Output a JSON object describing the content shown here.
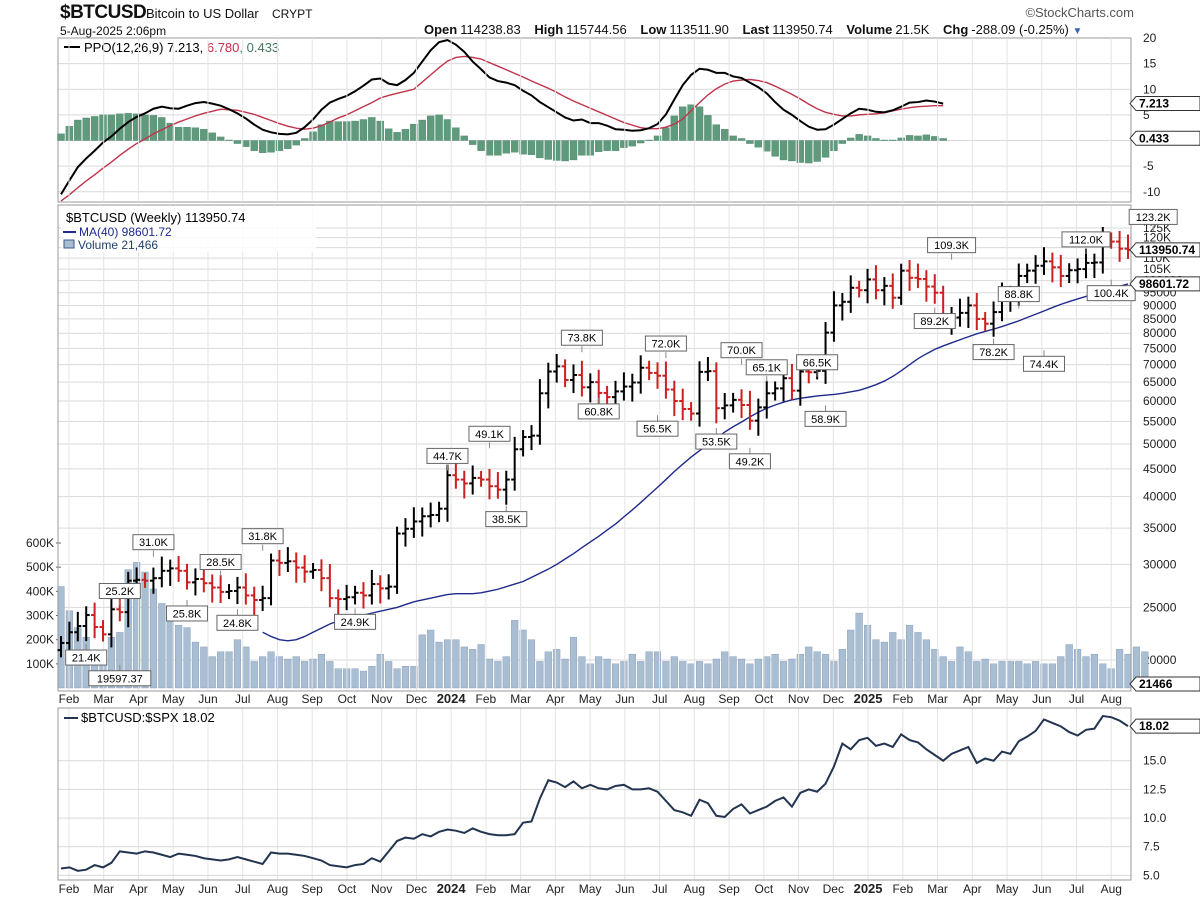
{
  "header": {
    "symbol": "$BTCUSD",
    "description": "Bitcoin to US Dollar",
    "exchange": "CRYPT",
    "date": "5-Aug-2025 2:06pm",
    "brand": "©StockCharts.com",
    "open_label": "Open",
    "open": "114238.83",
    "high_label": "High",
    "high": "115744.56",
    "low_label": "Low",
    "low": "113511.90",
    "last_label": "Last",
    "last": "113950.74",
    "volume_label": "Volume",
    "volume": "21.5K",
    "chg_label": "Chg",
    "chg": "-288.09 (-0.25%)"
  },
  "colors": {
    "up": "#000000",
    "down": "#cc1f1f",
    "ma": "#1f2a8c",
    "ppo": "#000000",
    "signal": "#c0334a",
    "hist": "#5f9a7c",
    "volume": "#a9bdd3",
    "ratio": "#22344f",
    "grid": "#d9d9d9"
  },
  "months": [
    "Feb",
    "Mar",
    "Apr",
    "May",
    "Jun",
    "Jul",
    "Aug",
    "Sep",
    "Oct",
    "Nov",
    "Dec",
    "2024",
    "Feb",
    "Mar",
    "Apr",
    "May",
    "Jun",
    "Jul",
    "Aug",
    "Sep",
    "Oct",
    "Nov",
    "Dec",
    "2025",
    "Feb",
    "Mar",
    "Apr",
    "May",
    "Jun",
    "Jul",
    "Aug"
  ],
  "chart_data": [
    {
      "type": "line",
      "panel": "PPO",
      "legend": [
        "PPO(12,26,9) 7.213, 6.780, 0.433"
      ],
      "legend_parts": [
        "PPO(12,26,9) 7.213, ",
        "6.780",
        ", 0.433"
      ],
      "y_ticks": [
        20,
        15,
        10,
        5,
        0,
        -5,
        -10
      ],
      "ylim": [
        -12,
        20
      ],
      "last_labels": [
        "7.213",
        "0.433"
      ],
      "ppo": [
        -10.5,
        -7.8,
        -5.2,
        -3.5,
        -2,
        -0.4,
        0.8,
        2.3,
        3.6,
        4.6,
        5.3,
        6.2,
        6.6,
        6.3,
        6.2,
        6.8,
        7.3,
        7.5,
        7.2,
        6.8,
        6.1,
        5.3,
        4.3,
        3.1,
        2.1,
        1.6,
        1.3,
        1.2,
        1.5,
        2.6,
        4.1,
        6,
        7.4,
        8.1,
        8.7,
        9.6,
        10.7,
        11.9,
        12.1,
        11.1,
        10.8,
        11.8,
        13.2,
        15.4,
        17.6,
        19.2,
        19.6,
        18.7,
        17.3,
        15.4,
        13.9,
        12.3,
        11.6,
        11.3,
        10.8,
        9.7,
        8.8,
        7.5,
        6.5,
        5.5,
        4.5,
        3.9,
        4.1,
        3.4,
        3.4,
        2.9,
        2.2,
        2.1,
        1.9,
        2,
        2.4,
        3.2,
        5.1,
        8,
        10.8,
        12.8,
        14,
        13.8,
        13.2,
        13.2,
        12.5,
        12.2,
        11.3,
        10.4,
        9.2,
        7.5,
        6,
        5,
        3.8,
        2.7,
        2.1,
        2.2,
        3.1,
        4.2,
        5.3,
        6.2,
        6,
        5.6,
        5.5,
        5.9,
        6.6,
        7.4,
        7.5,
        7.8,
        7.6,
        7.2
      ],
      "signal": [
        -11.8,
        -10.6,
        -9.2,
        -7.9,
        -6.7,
        -5.4,
        -4.2,
        -2.9,
        -1.7,
        -0.6,
        0.3,
        1.3,
        2.1,
        2.9,
        3.6,
        4.2,
        4.8,
        5.3,
        5.7,
        6.1,
        6,
        5.9,
        5.5,
        5.1,
        4.5,
        3.9,
        3.3,
        2.8,
        2.4,
        2.2,
        2.4,
        2.9,
        3.6,
        4.4,
        5,
        5.8,
        6.6,
        7.4,
        8.3,
        8.8,
        9.2,
        9.6,
        10,
        11.4,
        12.8,
        14.2,
        15.5,
        16.2,
        16.4,
        16.2,
        15.9,
        15.2,
        14.5,
        13.8,
        13.1,
        12.4,
        11.6,
        10.9,
        10.2,
        9.4,
        8.5,
        7.7,
        7,
        6.3,
        5.6,
        4.9,
        4.2,
        3.5,
        3,
        2.5,
        2.3,
        2.3,
        2.6,
        3.2,
        4.2,
        5.8,
        7.4,
        8.9,
        10.1,
        11,
        11.6,
        11.8,
        11.9,
        11.7,
        11.3,
        10.6,
        9.8,
        9,
        8.1,
        7.1,
        6.2,
        5.5,
        5.1,
        4.8,
        4.8,
        5,
        5.1,
        5.2,
        5.4,
        5.8,
        6.1,
        6.4,
        6.6,
        6.7,
        6.8,
        6.8
      ]
    },
    {
      "type": "bar",
      "panel": "Price",
      "legend": [
        "$BTCUSD (Weekly) 113950.74",
        "MA(40) 98601.72",
        "Volume 21,466"
      ],
      "price_ticks": [
        125,
        120,
        115,
        110,
        105,
        100,
        95,
        90,
        85,
        80,
        75,
        70,
        65,
        60,
        55,
        50,
        45,
        40,
        35,
        30,
        25,
        20
      ],
      "price_tick_labels": [
        "125K",
        "120K",
        "115K",
        "110K",
        "105K",
        "100000",
        "95000",
        "90000",
        "85000",
        "80000",
        "75000",
        "70000",
        "65000",
        "60000",
        "55000",
        "50000",
        "45000",
        "40000",
        "35000",
        "30000",
        "25000",
        "20000"
      ],
      "volume_ticks": [
        "600K",
        "500K",
        "400K",
        "300K",
        "200K",
        "100K"
      ],
      "last_labels": [
        "113950.74",
        "98601.72",
        "21466"
      ],
      "close_k": [
        21.5,
        22.5,
        23.1,
        24.2,
        23.0,
        22.3,
        24.8,
        24.5,
        28.0,
        28.1,
        28.0,
        28.3,
        29.2,
        29.5,
        29.2,
        27.8,
        28.2,
        27.7,
        27.2,
        26.7,
        26.8,
        27.2,
        26.3,
        25.8,
        26.0,
        30.5,
        30.2,
        30.4,
        29.6,
        29.1,
        29.3,
        28.3,
        26.0,
        25.9,
        26.1,
        26.6,
        26.3,
        27.6,
        27.1,
        27.3,
        34.2,
        34.9,
        36.0,
        36.8,
        37.0,
        38.0,
        43.8,
        43.0,
        42.3,
        43.3,
        43.0,
        41.8,
        41.2,
        43.0,
        48.9,
        51.5,
        51.8,
        62.0,
        68.0,
        69.5,
        65.6,
        67.0,
        63.6,
        65.0,
        62.1,
        61.0,
        62.5,
        63.8,
        64.9,
        69.1,
        67.6,
        66.8,
        63.0,
        60.0,
        58.0,
        56.9,
        67.9,
        68.1,
        58.2,
        58.9,
        60.3,
        59.0,
        55.2,
        58.4,
        62.0,
        63.3,
        66.1,
        62.7,
        68.0,
        67.8,
        68.2,
        80.2,
        90.0,
        91.4,
        97.0,
        96.0,
        100.5,
        96.0,
        97.8,
        93.0,
        104.3,
        101.2,
        100.7,
        97.5,
        95.0,
        84.0,
        85.5,
        87.2,
        90.0,
        85.0,
        83.3,
        87.5,
        93.4,
        94.2,
        102.0,
        104.3,
        106.5,
        108.5,
        105.8,
        102.0,
        104.5,
        105.0,
        107.8,
        108.0,
        119.1,
        118.0,
        114.5,
        113.95
      ],
      "ma40_k": [
        22.5,
        22.1,
        21.8,
        21.7,
        21.8,
        22.1,
        22.5,
        22.9,
        23.3,
        23.6,
        23.8,
        24.0,
        24.2,
        24.4,
        24.6,
        24.8,
        25.0,
        25.3,
        25.6,
        25.8,
        26.0,
        26.2,
        26.4,
        26.5,
        26.5,
        26.5,
        26.6,
        26.8,
        27.0,
        27.3,
        27.6,
        27.9,
        28.4,
        28.9,
        29.4,
        30.0,
        30.7,
        31.4,
        32.2,
        33.0,
        33.8,
        34.7,
        35.6,
        36.7,
        37.8,
        39.0,
        40.3,
        41.6,
        43.0,
        44.5,
        45.9,
        47.3,
        48.6,
        49.8,
        51.2,
        52.6,
        53.8,
        54.9,
        56.1,
        57.2,
        58.2,
        59.0,
        59.7,
        60.3,
        60.7,
        61.0,
        61.3,
        61.5,
        61.7,
        62.0,
        62.4,
        62.8,
        63.5,
        64.3,
        65.3,
        66.6,
        68.2,
        70.0,
        71.8,
        73.3,
        74.7,
        75.8,
        76.8,
        77.8,
        78.8,
        79.8,
        80.6,
        81.4,
        82.3,
        83.3,
        84.3,
        85.5,
        86.7,
        87.9,
        89.2,
        90.4,
        91.5,
        92.5,
        93.5,
        94.6,
        95.6,
        96.6,
        97.6,
        98.6
      ],
      "volume_k": [
        420,
        320,
        250,
        210,
        140,
        130,
        210,
        230,
        490,
        520,
        480,
        410,
        350,
        310,
        260,
        250,
        190,
        170,
        130,
        150,
        150,
        200,
        170,
        110,
        130,
        150,
        130,
        120,
        130,
        110,
        120,
        140,
        110,
        80,
        80,
        80,
        70,
        90,
        140,
        110,
        80,
        90,
        90,
        220,
        240,
        190,
        200,
        200,
        170,
        160,
        180,
        120,
        110,
        130,
        280,
        240,
        200,
        110,
        150,
        160,
        120,
        210,
        130,
        100,
        130,
        120,
        100,
        110,
        140,
        110,
        150,
        150,
        110,
        130,
        110,
        100,
        110,
        100,
        120,
        150,
        130,
        120,
        100,
        120,
        130,
        140,
        110,
        120,
        140,
        170,
        150,
        140,
        110,
        160,
        240,
        310,
        260,
        200,
        190,
        230,
        200,
        260,
        230,
        200,
        160,
        130,
        110,
        170,
        150,
        110,
        120,
        100,
        110,
        110,
        110,
        100,
        110,
        100,
        100,
        130,
        180,
        160,
        130,
        140,
        100,
        80,
        160,
        140,
        170,
        150
      ],
      "annotations": [
        {
          "label": "25.2K",
          "week": 7,
          "value": 25.2,
          "pos": "above"
        },
        {
          "label": "21.4K",
          "week": 3,
          "value": 21.4,
          "pos": "below"
        },
        {
          "label": "19597.37",
          "week": 7,
          "value": 19.6,
          "pos": "below"
        },
        {
          "label": "31.0K",
          "week": 11,
          "value": 31.0,
          "pos": "above"
        },
        {
          "label": "28.5K",
          "week": 19,
          "value": 28.5,
          "pos": "above"
        },
        {
          "label": "25.8K",
          "week": 15,
          "value": 25.8,
          "pos": "below"
        },
        {
          "label": "24.8K",
          "week": 21,
          "value": 24.8,
          "pos": "below"
        },
        {
          "label": "31.8K",
          "week": 24,
          "value": 31.8,
          "pos": "above"
        },
        {
          "label": "24.9K",
          "week": 35,
          "value": 24.9,
          "pos": "below"
        },
        {
          "label": "44.7K",
          "week": 46,
          "value": 44.7,
          "pos": "above"
        },
        {
          "label": "49.1K",
          "week": 51,
          "value": 49.1,
          "pos": "above"
        },
        {
          "label": "38.5K",
          "week": 53,
          "value": 38.5,
          "pos": "below"
        },
        {
          "label": "73.8K",
          "week": 62,
          "value": 73.8,
          "pos": "above"
        },
        {
          "label": "60.8K",
          "week": 64,
          "value": 60.8,
          "pos": "below"
        },
        {
          "label": "72.0K",
          "week": 72,
          "value": 72.0,
          "pos": "above"
        },
        {
          "label": "56.5K",
          "week": 71,
          "value": 56.5,
          "pos": "below"
        },
        {
          "label": "53.5K",
          "week": 78,
          "value": 53.5,
          "pos": "below"
        },
        {
          "label": "70.0K",
          "week": 81,
          "value": 70.0,
          "pos": "above"
        },
        {
          "label": "65.1K",
          "week": 84,
          "value": 65.1,
          "pos": "above"
        },
        {
          "label": "49.2K",
          "week": 82,
          "value": 49.2,
          "pos": "below"
        },
        {
          "label": "66.5K",
          "week": 90,
          "value": 66.5,
          "pos": "above"
        },
        {
          "label": "58.9K",
          "week": 91,
          "value": 58.9,
          "pos": "below"
        },
        {
          "label": "109.3K",
          "week": 106,
          "value": 109.3,
          "pos": "above"
        },
        {
          "label": "89.2K",
          "week": 104,
          "value": 89.2,
          "pos": "below"
        },
        {
          "label": "88.8K",
          "week": 114,
          "value": 88.8,
          "pos": "above"
        },
        {
          "label": "78.2K",
          "week": 111,
          "value": 78.2,
          "pos": "below"
        },
        {
          "label": "74.4K",
          "week": 117,
          "value": 74.4,
          "pos": "below"
        },
        {
          "label": "112.0K",
          "week": 122,
          "value": 112.0,
          "pos": "above"
        },
        {
          "label": "100.4K",
          "week": 125,
          "value": 100.4,
          "pos": "below"
        },
        {
          "label": "123.2K",
          "week": 130,
          "value": 123.2,
          "pos": "above"
        }
      ]
    },
    {
      "type": "line",
      "panel": "Ratio",
      "legend": [
        "$BTCUSD:$SPX 18.02"
      ],
      "y_ticks": [
        15.0,
        12.5,
        10.0,
        7.5,
        5.0
      ],
      "ylim": [
        4.6,
        19.6
      ],
      "last_labels": [
        "18.02"
      ],
      "values": [
        5.6,
        5.7,
        5.4,
        5.5,
        5.9,
        5.7,
        6.1,
        7.1,
        7.0,
        6.9,
        7.1,
        7.0,
        6.8,
        6.6,
        6.9,
        6.8,
        6.7,
        6.5,
        6.4,
        6.3,
        6.4,
        6.6,
        6.4,
        6.2,
        6.0,
        7.0,
        6.9,
        6.9,
        6.8,
        6.7,
        6.5,
        6.3,
        5.9,
        5.8,
        5.7,
        5.9,
        6.0,
        6.5,
        6.2,
        7.1,
        8.0,
        8.3,
        8.2,
        8.6,
        8.4,
        8.8,
        9.0,
        8.9,
        8.7,
        9.1,
        8.8,
        8.6,
        8.5,
        8.5,
        8.6,
        9.6,
        9.7,
        11.7,
        13.3,
        13.1,
        12.7,
        13.2,
        12.6,
        12.9,
        12.6,
        12.5,
        12.8,
        12.9,
        12.5,
        12.5,
        12.6,
        12.3,
        11.5,
        10.7,
        10.5,
        10.2,
        11.6,
        11.3,
        10.2,
        10.1,
        10.8,
        11.2,
        10.4,
        10.7,
        11.0,
        11.5,
        11.8,
        11.0,
        12.2,
        12.5,
        12.3,
        13.0,
        14.5,
        16.5,
        16.0,
        16.8,
        17.0,
        16.3,
        16.5,
        16.2,
        17.3,
        16.8,
        16.6,
        16.0,
        15.5,
        15.0,
        15.6,
        15.9,
        16.2,
        14.8,
        15.2,
        15.0,
        15.8,
        15.6,
        16.7,
        17.1,
        17.6,
        18.6,
        18.3,
        18.0,
        17.5,
        17.2,
        17.7,
        17.8,
        18.9,
        18.8,
        18.5,
        18.02
      ]
    }
  ]
}
